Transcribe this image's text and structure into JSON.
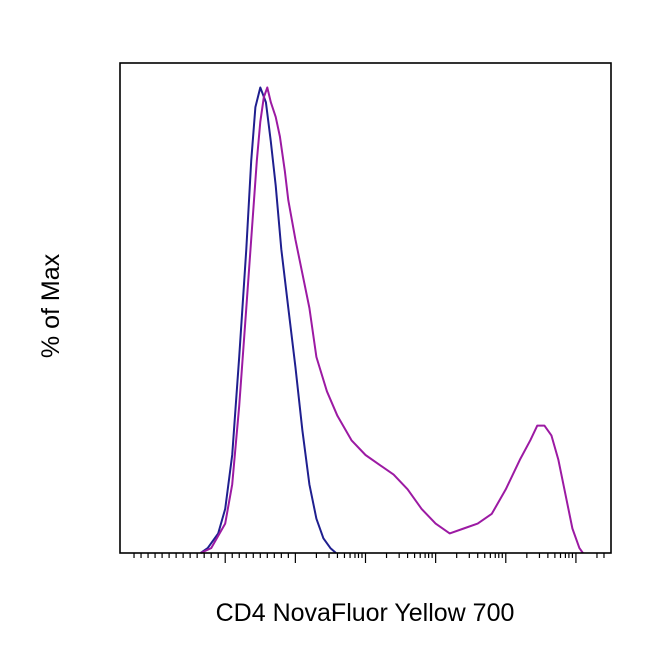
{
  "chart_data": {
    "type": "line",
    "xlabel": "CD4 NovaFluor Yellow 700",
    "ylabel": "% of Max",
    "x_scale": "biexponential (log decades)",
    "xlim": [
      -1.5,
      5.5
    ],
    "ylim": [
      0,
      100
    ],
    "grid": false,
    "legend": "none",
    "series": [
      {
        "color": "#1f1f8f",
        "points": [
          [
            -0.35,
            0
          ],
          [
            -0.25,
            1
          ],
          [
            -0.1,
            4
          ],
          [
            0.0,
            9
          ],
          [
            0.1,
            20
          ],
          [
            0.2,
            40
          ],
          [
            0.3,
            62
          ],
          [
            0.37,
            80
          ],
          [
            0.43,
            91
          ],
          [
            0.5,
            95
          ],
          [
            0.58,
            92
          ],
          [
            0.65,
            84
          ],
          [
            0.72,
            75
          ],
          [
            0.8,
            62
          ],
          [
            0.9,
            50
          ],
          [
            1.0,
            38
          ],
          [
            1.1,
            25
          ],
          [
            1.2,
            14
          ],
          [
            1.3,
            7
          ],
          [
            1.4,
            3
          ],
          [
            1.5,
            1
          ],
          [
            1.58,
            0
          ]
        ]
      },
      {
        "color": "#9c1aa3",
        "points": [
          [
            -0.35,
            0
          ],
          [
            -0.2,
            1
          ],
          [
            0.0,
            6
          ],
          [
            0.1,
            14
          ],
          [
            0.2,
            30
          ],
          [
            0.3,
            50
          ],
          [
            0.38,
            66
          ],
          [
            0.45,
            80
          ],
          [
            0.5,
            88
          ],
          [
            0.55,
            93
          ],
          [
            0.6,
            95
          ],
          [
            0.65,
            92
          ],
          [
            0.72,
            89
          ],
          [
            0.78,
            85
          ],
          [
            0.85,
            78
          ],
          [
            0.9,
            72
          ],
          [
            1.0,
            64
          ],
          [
            1.1,
            57
          ],
          [
            1.2,
            50
          ],
          [
            1.3,
            40
          ],
          [
            1.45,
            33
          ],
          [
            1.6,
            28
          ],
          [
            1.8,
            23
          ],
          [
            2.0,
            20
          ],
          [
            2.2,
            18
          ],
          [
            2.4,
            16
          ],
          [
            2.6,
            13
          ],
          [
            2.8,
            9
          ],
          [
            3.0,
            6
          ],
          [
            3.2,
            4
          ],
          [
            3.4,
            5
          ],
          [
            3.6,
            6
          ],
          [
            3.8,
            8
          ],
          [
            4.0,
            13
          ],
          [
            4.2,
            19
          ],
          [
            4.35,
            23
          ],
          [
            4.45,
            26
          ],
          [
            4.55,
            26
          ],
          [
            4.65,
            24
          ],
          [
            4.75,
            19
          ],
          [
            4.85,
            12
          ],
          [
            4.95,
            5
          ],
          [
            5.05,
            1
          ],
          [
            5.1,
            0
          ]
        ]
      }
    ],
    "x_major_ticks": [
      0,
      1,
      2,
      3,
      4,
      5
    ],
    "x_minor_ticks": [
      -1.3,
      -1.2,
      -1.1,
      -1.0,
      -0.9,
      -0.8,
      -0.7,
      -0.6,
      -0.5,
      -0.4,
      -0.3,
      -0.2,
      -0.1,
      0.1,
      0.2,
      0.3,
      0.4,
      0.5,
      0.6,
      0.7,
      0.8,
      0.9,
      1.3,
      1.48,
      1.6,
      1.7,
      1.78,
      1.85,
      1.9,
      1.95,
      2.3,
      2.48,
      2.6,
      2.7,
      2.78,
      2.85,
      2.9,
      2.95,
      3.3,
      3.48,
      3.6,
      3.7,
      3.78,
      3.85,
      3.9,
      3.95,
      4.3,
      4.48,
      4.6,
      4.7,
      4.78,
      4.85,
      4.9,
      4.95,
      5.3,
      5.4
    ]
  }
}
